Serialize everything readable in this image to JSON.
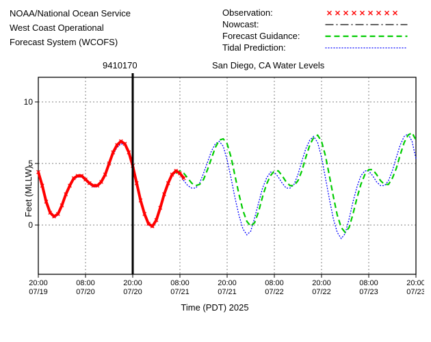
{
  "header": {
    "line1": "NOAA/National Ocean Service",
    "line2": "West Coast Operational",
    "line3": "Forecast System (WCOFS)"
  },
  "legend": {
    "observation": "Observation:",
    "nowcast": "Nowcast:",
    "forecast": "Forecast Guidance:",
    "tidal": "Tidal Prediction:"
  },
  "station_id": "9410170",
  "station_name": "San Diego, CA Water Levels",
  "axes": {
    "xlabel": "Time (PDT) 2025",
    "ylabel": "Feet (MLLW)",
    "xmin": 0,
    "xmax": 96,
    "ymin": -4,
    "ymax": 12,
    "yticks": [
      0,
      5,
      10
    ],
    "xticks_hr": [
      0,
      12,
      24,
      36,
      48,
      60,
      72,
      84,
      96
    ],
    "xtick_labels_top": [
      "20:00",
      "08:00",
      "20:00",
      "08:00",
      "20:00",
      "08:00",
      "20:00",
      "08:00",
      "20:00"
    ],
    "xtick_labels_bot": [
      "07/19",
      "07/20",
      "07/20",
      "07/21",
      "07/21",
      "07/22",
      "07/22",
      "07/23",
      "07/23"
    ],
    "now_line_hr": 24,
    "grid_color": "#000000",
    "frame_color": "#000000"
  },
  "series": {
    "tidal": {
      "color": "#0000ff",
      "width": 1.3,
      "dash": "2,2",
      "y": [
        4.2,
        3.0,
        1.7,
        0.9,
        0.6,
        0.8,
        1.5,
        2.4,
        3.1,
        3.7,
        3.9,
        3.9,
        3.6,
        3.3,
        3.1,
        3.1,
        3.4,
        4.0,
        4.9,
        5.7,
        6.3,
        6.6,
        6.5,
        5.8,
        4.7,
        3.3,
        1.9,
        0.8,
        0.0,
        -0.2,
        0.3,
        1.3,
        2.4,
        3.3,
        4.0,
        4.3,
        4.1,
        3.6,
        3.2,
        3.0,
        3.0,
        3.4,
        4.2,
        5.1,
        6.0,
        6.6,
        6.8,
        6.4,
        5.3,
        3.8,
        2.2,
        0.8,
        -0.3,
        -0.8,
        -0.5,
        0.6,
        1.8,
        3.0,
        3.8,
        4.3,
        4.3,
        3.9,
        3.4,
        3.0,
        3.0,
        3.3,
        4.1,
        5.2,
        6.2,
        6.9,
        7.2,
        6.7,
        5.5,
        3.8,
        2.1,
        0.5,
        -0.6,
        -1.1,
        -0.7,
        0.5,
        1.9,
        3.1,
        4.0,
        4.4,
        4.4,
        4.0,
        3.5,
        3.2,
        3.2,
        3.6,
        4.4,
        5.5,
        6.5,
        7.2,
        7.4,
        6.8,
        5.4
      ]
    },
    "forecast": {
      "color": "#00cc00",
      "width": 2.2,
      "dash": "8,5",
      "start_hr": 35,
      "y": [
        4.2,
        4.4,
        4.2,
        3.8,
        3.4,
        3.2,
        3.3,
        3.7,
        4.5,
        5.4,
        6.3,
        6.9,
        7.0,
        6.6,
        5.5,
        4.0,
        2.5,
        1.2,
        0.3,
        -0.1,
        0.2,
        1.1,
        2.3,
        3.3,
        4.0,
        4.4,
        4.4,
        4.0,
        3.5,
        3.2,
        3.2,
        3.6,
        4.4,
        5.5,
        6.5,
        7.1,
        7.3,
        6.8,
        5.6,
        4.0,
        2.3,
        0.8,
        -0.2,
        -0.6,
        -0.2,
        0.9,
        2.2,
        3.3,
        4.1,
        4.5,
        4.5,
        4.1,
        3.6,
        3.3,
        3.3,
        3.8,
        4.6,
        5.7,
        6.7,
        7.3,
        7.5,
        6.9
      ]
    },
    "observation": {
      "color": "#ff0000",
      "width": 4.0,
      "y": [
        4.3,
        3.2,
        1.9,
        1.0,
        0.7,
        0.9,
        1.6,
        2.5,
        3.2,
        3.8,
        4.0,
        4.0,
        3.7,
        3.4,
        3.2,
        3.2,
        3.5,
        4.1,
        5.0,
        5.9,
        6.5,
        6.8,
        6.6,
        5.9,
        4.8,
        3.4,
        2.0,
        0.9,
        0.1,
        -0.1,
        0.4,
        1.4,
        2.5,
        3.4,
        4.1,
        4.4,
        4.2,
        3.8
      ]
    }
  }
}
